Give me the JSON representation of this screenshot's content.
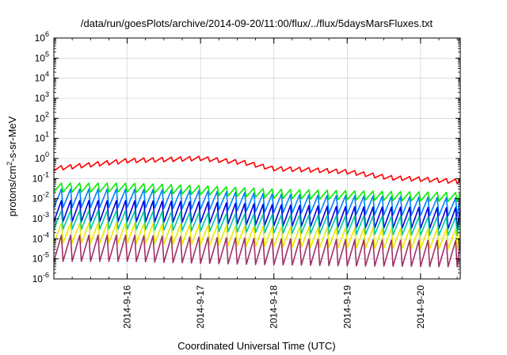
{
  "chart_data": {
    "type": "line",
    "title": "/data/run/goesPlots/archive/2014-09-20/11:00/flux/../flux/5daysMarsFluxes.txt",
    "xlabel": "Coordinated Universal Time (UTC)",
    "ylabel_main": "protons/cm",
    "ylabel_sup": "2",
    "ylabel_rest": "-s-sr-MeV",
    "yscale": "log",
    "ylim": [
      1e-06,
      1000000.0
    ],
    "xlim": [
      "2014-09-15 00:00",
      "2014-09-20 13:00"
    ],
    "x_ticks": [
      "2014-9-16",
      "2014-9-17",
      "2014-9-18",
      "2014-9-19",
      "2014-9-20"
    ],
    "y_ticks": [
      {
        "base": "10",
        "exp": "-6"
      },
      {
        "base": "10",
        "exp": "-5"
      },
      {
        "base": "10",
        "exp": "-4"
      },
      {
        "base": "10",
        "exp": "-3"
      },
      {
        "base": "10",
        "exp": "-2"
      },
      {
        "base": "10",
        "exp": "-1"
      },
      {
        "base": "10",
        "exp": "0"
      },
      {
        "base": "10",
        "exp": "1"
      },
      {
        "base": "10",
        "exp": "2"
      },
      {
        "base": "10",
        "exp": "3"
      },
      {
        "base": "10",
        "exp": "4"
      },
      {
        "base": "10",
        "exp": "5"
      },
      {
        "base": "10",
        "exp": "6"
      }
    ],
    "grid": true,
    "sawtooth_cycles_per_day": 8,
    "series": [
      {
        "color": "#ff0000",
        "trend_x_days": [
          0,
          1.0,
          2.0,
          2.6,
          3.0,
          3.5,
          4.0,
          4.6,
          5.0,
          5.54
        ],
        "trend_y_peak": [
          0.4,
          1.0,
          1.3,
          0.8,
          0.4,
          0.35,
          0.28,
          0.14,
          0.12,
          0.09
        ],
        "sawtooth_dip_factor": 0.6
      },
      {
        "color": "#00ee00",
        "trend_x_days": [
          0,
          1.0,
          2.0,
          3.0,
          4.0,
          5.54
        ],
        "trend_y_peak": [
          0.06,
          0.06,
          0.045,
          0.03,
          0.025,
          0.02
        ],
        "sawtooth_dip_factor": 0.35
      },
      {
        "color": "#0080ff",
        "trend_x_days": [
          0,
          1.0,
          2.0,
          3.0,
          4.0,
          5.54
        ],
        "trend_y_peak": [
          0.03,
          0.03,
          0.025,
          0.017,
          0.014,
          0.011
        ],
        "sawtooth_dip_factor": 0.12
      },
      {
        "color": "#0000dd",
        "trend_x_days": [
          0,
          1.0,
          2.0,
          3.0,
          4.0,
          5.54
        ],
        "trend_y_peak": [
          0.008,
          0.008,
          0.007,
          0.005,
          0.004,
          0.0035
        ],
        "sawtooth_dip_factor": 0.09
      },
      {
        "color": "#00c8a0",
        "trend_x_days": [
          0,
          1.0,
          2.0,
          3.0,
          4.0,
          5.54
        ],
        "trend_y_peak": [
          0.0025,
          0.0025,
          0.002,
          0.0016,
          0.0014,
          0.0012
        ],
        "sawtooth_dip_factor": 0.12
      },
      {
        "color": "#e8e800",
        "trend_x_days": [
          0,
          1.0,
          2.0,
          3.0,
          4.0,
          5.54
        ],
        "trend_y_peak": [
          0.0006,
          0.0006,
          0.0005,
          0.0004,
          0.00035,
          0.0003
        ],
        "sawtooth_dip_factor": 0.1
      },
      {
        "color": "#a0306a",
        "trend_x_days": [
          0,
          1.0,
          2.0,
          3.0,
          4.0,
          5.54
        ],
        "trend_y_peak": [
          0.00015,
          0.00015,
          0.00012,
          0.0001,
          9e-05,
          8e-05
        ],
        "sawtooth_dip_factor": 0.05
      }
    ]
  }
}
